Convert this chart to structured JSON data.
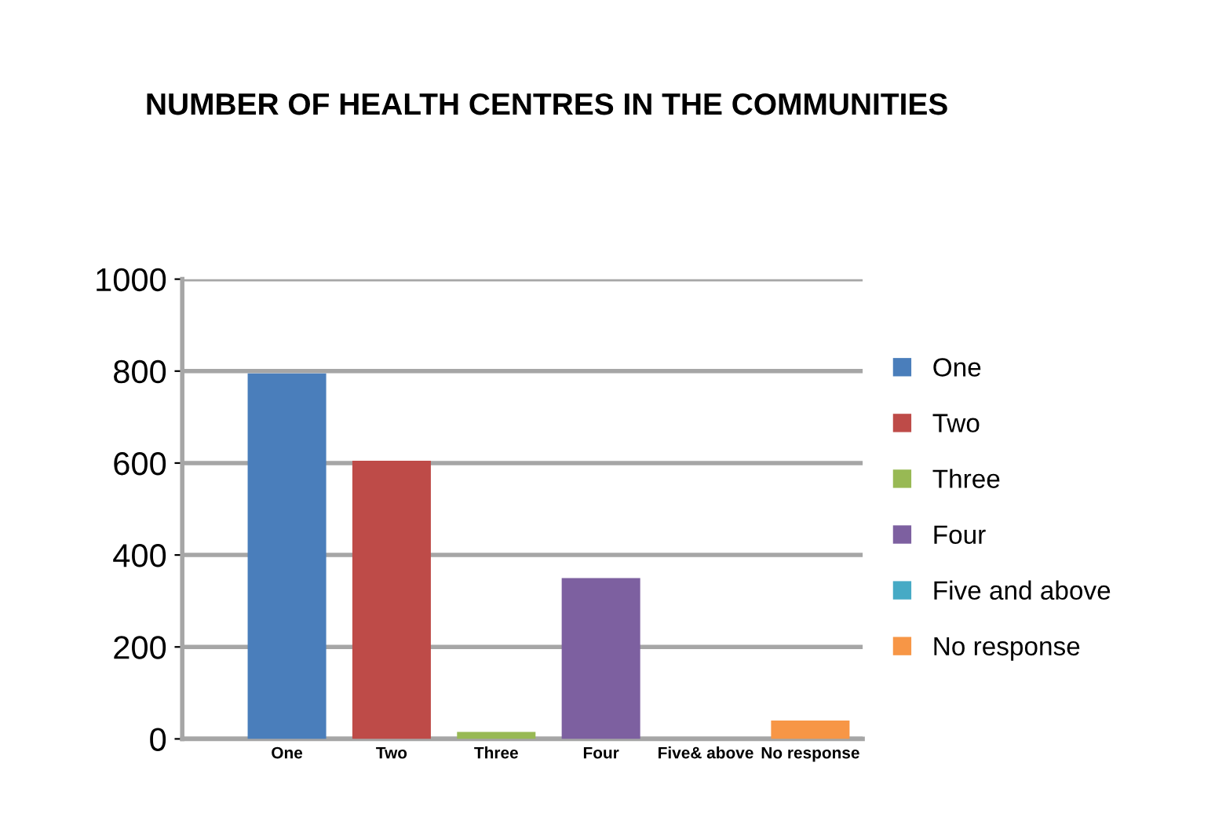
{
  "chart_data": {
    "type": "bar",
    "title": "NUMBER OF HEALTH CENTRES IN THE COMMUNITIES",
    "categories": [
      "One",
      "Two",
      "Three",
      "Four",
      "Five& above",
      "No response"
    ],
    "series": [
      {
        "name": "One",
        "color": "#4a7ebb",
        "values": [
          795,
          null,
          null,
          null,
          null,
          null
        ]
      },
      {
        "name": "Two",
        "color": "#be4b48",
        "values": [
          null,
          605,
          null,
          null,
          null,
          null
        ]
      },
      {
        "name": "Three",
        "color": "#98b954",
        "values": [
          null,
          null,
          15,
          null,
          null,
          null
        ]
      },
      {
        "name": "Four",
        "color": "#7d60a0",
        "values": [
          null,
          null,
          null,
          350,
          null,
          null
        ]
      },
      {
        "name": "Five and above",
        "color": "#46aac5",
        "values": [
          null,
          null,
          null,
          null,
          0,
          null
        ]
      },
      {
        "name": "No response",
        "color": "#f79646",
        "values": [
          null,
          null,
          null,
          null,
          null,
          40
        ]
      }
    ],
    "ylim": [
      0,
      1000
    ],
    "yticks": [
      0,
      200,
      400,
      600,
      800,
      1000
    ],
    "grid": "y",
    "legend": "right"
  }
}
